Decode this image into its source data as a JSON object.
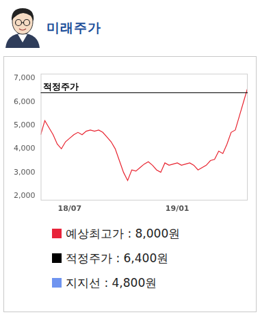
{
  "header": {
    "title": "미래주가"
  },
  "chart_data": {
    "type": "line",
    "categories": [
      null,
      null,
      null,
      null,
      null,
      null,
      null,
      "18/07",
      null,
      null,
      null,
      null,
      null,
      null,
      null,
      null,
      null,
      null,
      null,
      null,
      null,
      null,
      null,
      null,
      null,
      null,
      null,
      null,
      null,
      null,
      null,
      null,
      null,
      "19/01",
      null,
      null,
      null,
      null,
      null,
      null,
      null,
      null,
      null,
      null,
      null,
      null,
      null,
      null,
      null,
      null,
      null
    ],
    "values": [
      4600,
      5200,
      4900,
      4600,
      4200,
      4000,
      4300,
      4450,
      4600,
      4700,
      4600,
      4750,
      4800,
      4750,
      4800,
      4700,
      4500,
      4300,
      4000,
      3500,
      3000,
      2650,
      3100,
      3050,
      3200,
      3350,
      3450,
      3300,
      3100,
      3000,
      3400,
      3300,
      3350,
      3400,
      3300,
      3350,
      3400,
      3300,
      3100,
      3200,
      3300,
      3500,
      3550,
      3900,
      3800,
      4200,
      4700,
      4800,
      5400,
      6000,
      6600
    ],
    "color": "#e8232f",
    "ylim": [
      1800,
      7200
    ],
    "yticks": [
      {
        "value": 2000,
        "label": "2,000"
      },
      {
        "value": 3000,
        "label": "3,000"
      },
      {
        "value": 4000,
        "label": "4,000"
      },
      {
        "value": 5000,
        "label": "5,000"
      },
      {
        "value": 6000,
        "label": "6,000"
      },
      {
        "value": 7000,
        "label": "7,000"
      }
    ],
    "grid": false,
    "annotations": [
      {
        "label": "적정주가",
        "value": 6400,
        "color": "#000000"
      }
    ]
  },
  "legend_box": [
    {
      "text": "예상최고가 : 8,000원",
      "color": "#e8233a"
    },
    {
      "text": "적정주가 : 6,400원",
      "color": "#000000"
    },
    {
      "text": "지지선 : 4,800원",
      "color": "#6f94f0"
    }
  ]
}
